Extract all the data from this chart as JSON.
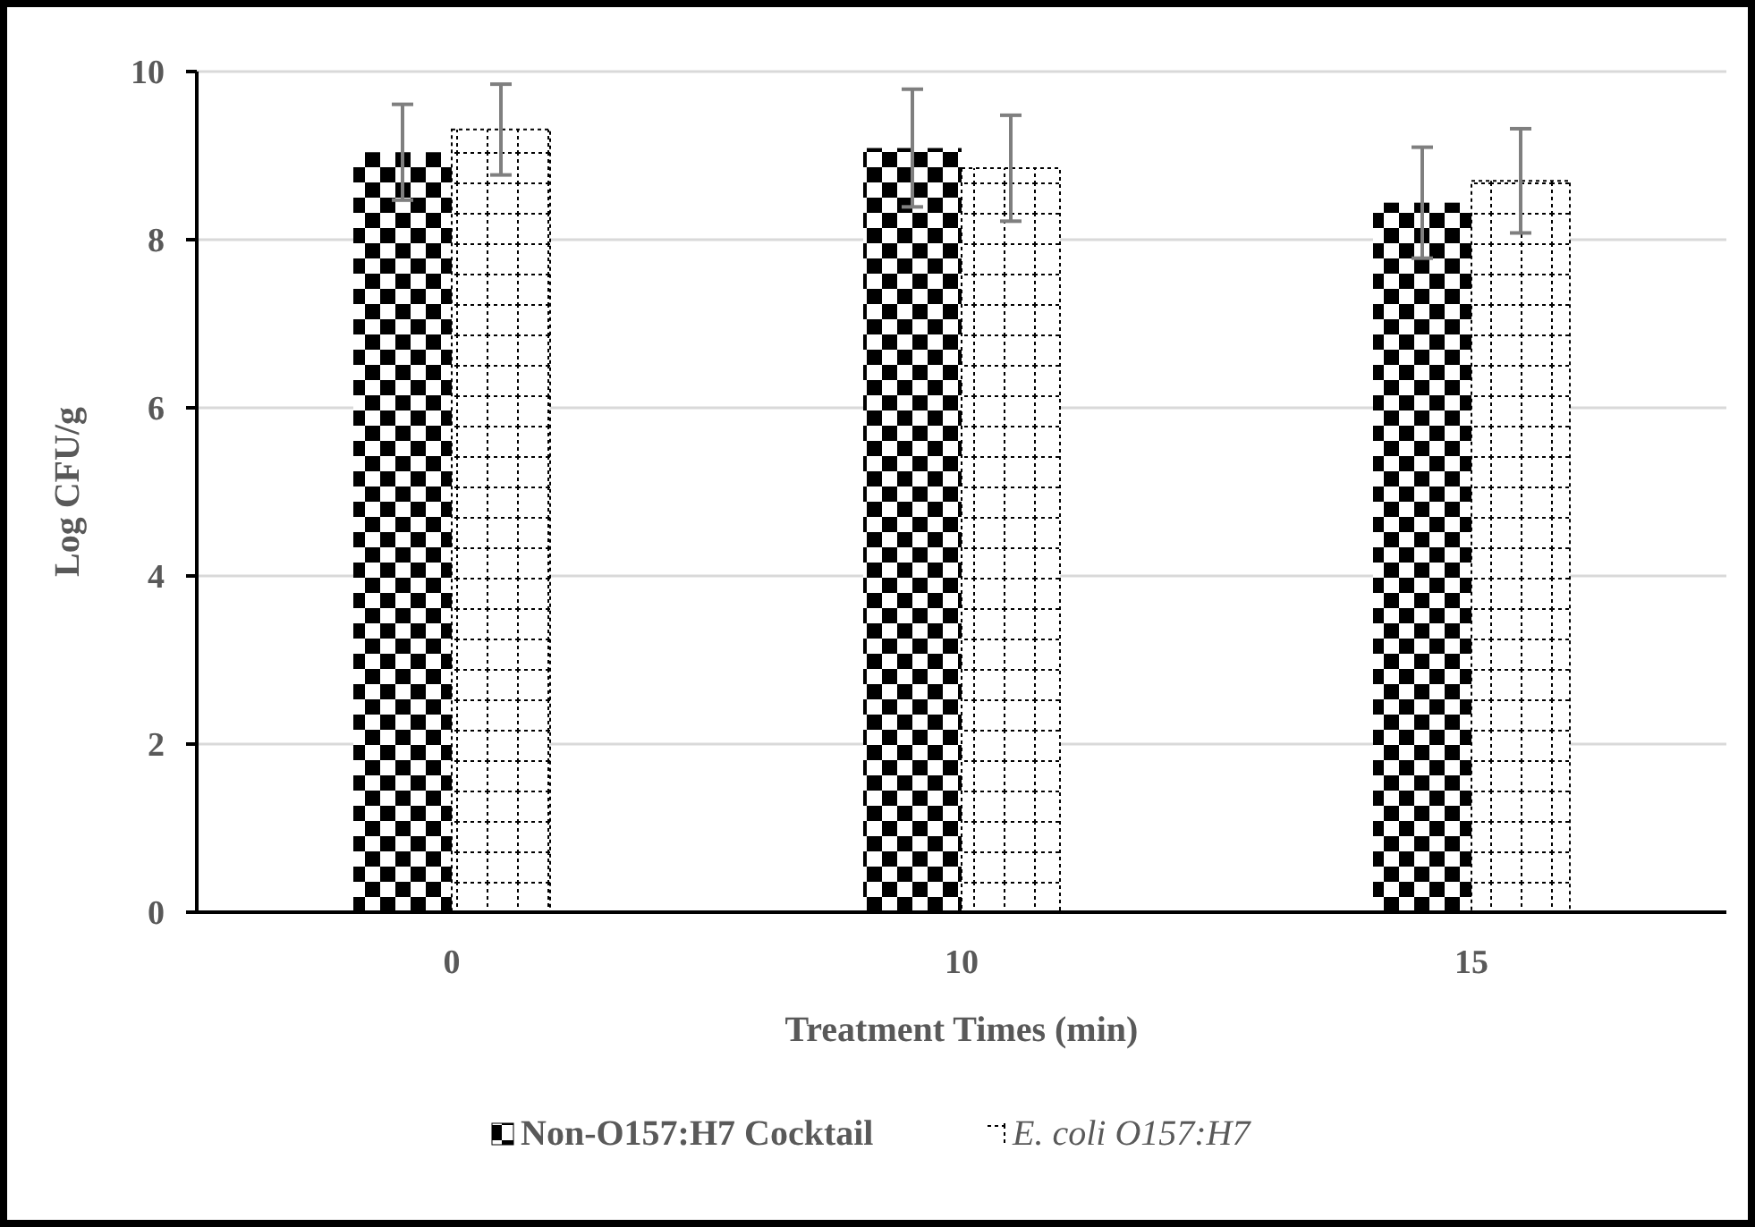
{
  "chart_data": {
    "type": "bar",
    "xlabel": "Treatment Times (min)",
    "ylabel": "Log CFU/g",
    "categories": [
      "0",
      "10",
      "15"
    ],
    "series": [
      {
        "name": "Non-O157:H7 Cocktail",
        "color": "#000000",
        "values": [
          9.04,
          9.09,
          8.44
        ],
        "errors": [
          0.57,
          0.7,
          0.66
        ]
      },
      {
        "name": "E. coli O157:H7",
        "color": "#000000",
        "values": [
          9.31,
          8.85,
          8.7
        ],
        "errors": [
          0.54,
          0.63,
          0.62
        ]
      }
    ],
    "ylim": [
      0,
      10
    ],
    "yticks": [
      0,
      2,
      4,
      6,
      8,
      10
    ],
    "grid": "y",
    "legend": "bottom"
  }
}
